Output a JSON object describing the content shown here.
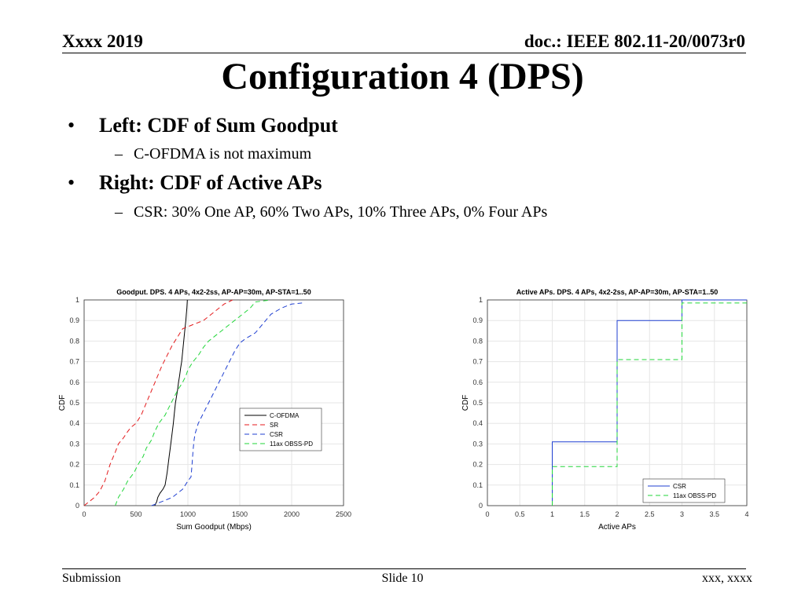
{
  "header": {
    "date": "Xxxx 2019",
    "doc": "doc.: IEEE 802.11-20/0073r0"
  },
  "title": "Configuration 4 (DPS)",
  "bullets": [
    {
      "text": "Left: CDF of Sum Goodput",
      "subs": [
        "C-OFDMA is not maximum"
      ]
    },
    {
      "text": "Right: CDF of Active APs",
      "subs": [
        "CSR: 30% One AP, 60% Two APs, 10% Three APs, 0% Four APs"
      ]
    }
  ],
  "footer": {
    "left": "Submission",
    "center": "Slide 10",
    "right": "xxx, xxxx"
  },
  "chart_data": [
    {
      "type": "line",
      "title": "Goodput. DPS. 4 APs, 4x2-2ss, AP-AP=30m, AP-STA=1..50",
      "xlabel": "Sum Goodput (Mbps)",
      "ylabel": "CDF",
      "xlim": [
        0,
        2500
      ],
      "ylim": [
        0,
        1
      ],
      "xticks": [
        "0",
        "500",
        "1000",
        "1500",
        "2000",
        "2500"
      ],
      "yticks": [
        "0",
        "0.1",
        "0.2",
        "0.3",
        "0.4",
        "0.5",
        "0.6",
        "0.7",
        "0.8",
        "0.9",
        "1"
      ],
      "grid": true,
      "legend_position": "center-right",
      "series": [
        {
          "name": "C-OFDMA",
          "color": "#000000",
          "dash": "solid",
          "step": false,
          "points": [
            [
              680,
              0
            ],
            [
              700,
              0.02
            ],
            [
              710,
              0.04
            ],
            [
              730,
              0.06
            ],
            [
              760,
              0.08
            ],
            [
              780,
              0.1
            ],
            [
              790,
              0.13
            ],
            [
              800,
              0.16
            ],
            [
              810,
              0.2
            ],
            [
              820,
              0.24
            ],
            [
              830,
              0.28
            ],
            [
              840,
              0.32
            ],
            [
              850,
              0.36
            ],
            [
              860,
              0.4
            ],
            [
              870,
              0.45
            ],
            [
              880,
              0.5
            ],
            [
              890,
              0.53
            ],
            [
              900,
              0.56
            ],
            [
              910,
              0.6
            ],
            [
              920,
              0.63
            ],
            [
              930,
              0.67
            ],
            [
              940,
              0.7
            ],
            [
              950,
              0.75
            ],
            [
              960,
              0.8
            ],
            [
              970,
              0.85
            ],
            [
              980,
              0.9
            ],
            [
              985,
              0.93
            ],
            [
              990,
              0.96
            ],
            [
              995,
              1
            ]
          ]
        },
        {
          "name": "SR",
          "color": "#e41a1c",
          "dash": "dashed",
          "step": false,
          "points": [
            [
              0,
              0
            ],
            [
              50,
              0.02
            ],
            [
              100,
              0.04
            ],
            [
              150,
              0.07
            ],
            [
              200,
              0.12
            ],
            [
              250,
              0.2
            ],
            [
              300,
              0.26
            ],
            [
              330,
              0.3
            ],
            [
              380,
              0.33
            ],
            [
              420,
              0.36
            ],
            [
              450,
              0.38
            ],
            [
              500,
              0.4
            ],
            [
              550,
              0.44
            ],
            [
              600,
              0.5
            ],
            [
              650,
              0.56
            ],
            [
              700,
              0.62
            ],
            [
              750,
              0.68
            ],
            [
              800,
              0.73
            ],
            [
              850,
              0.78
            ],
            [
              900,
              0.82
            ],
            [
              950,
              0.86
            ],
            [
              1050,
              0.88
            ],
            [
              1150,
              0.9
            ],
            [
              1250,
              0.94
            ],
            [
              1350,
              0.98
            ],
            [
              1430,
              1
            ]
          ]
        },
        {
          "name": "CSR",
          "color": "#1f3fd1",
          "dash": "dashed",
          "step": false,
          "points": [
            [
              650,
              0
            ],
            [
              750,
              0.02
            ],
            [
              850,
              0.04
            ],
            [
              950,
              0.08
            ],
            [
              1000,
              0.12
            ],
            [
              1030,
              0.14
            ],
            [
              1040,
              0.2
            ],
            [
              1050,
              0.27
            ],
            [
              1060,
              0.32
            ],
            [
              1070,
              0.35
            ],
            [
              1100,
              0.4
            ],
            [
              1150,
              0.45
            ],
            [
              1200,
              0.5
            ],
            [
              1250,
              0.55
            ],
            [
              1300,
              0.6
            ],
            [
              1350,
              0.65
            ],
            [
              1400,
              0.7
            ],
            [
              1450,
              0.75
            ],
            [
              1500,
              0.79
            ],
            [
              1550,
              0.81
            ],
            [
              1650,
              0.84
            ],
            [
              1700,
              0.87
            ],
            [
              1750,
              0.9
            ],
            [
              1800,
              0.93
            ],
            [
              1900,
              0.96
            ],
            [
              2000,
              0.98
            ],
            [
              2100,
              0.985
            ]
          ]
        },
        {
          "name": "11ax OBSS-PD",
          "color": "#22d63a",
          "dash": "dashed",
          "step": false,
          "points": [
            [
              300,
              0
            ],
            [
              330,
              0.04
            ],
            [
              380,
              0.08
            ],
            [
              420,
              0.12
            ],
            [
              480,
              0.16
            ],
            [
              520,
              0.2
            ],
            [
              570,
              0.24
            ],
            [
              600,
              0.28
            ],
            [
              650,
              0.32
            ],
            [
              680,
              0.36
            ],
            [
              720,
              0.4
            ],
            [
              780,
              0.44
            ],
            [
              820,
              0.48
            ],
            [
              860,
              0.52
            ],
            [
              900,
              0.56
            ],
            [
              950,
              0.6
            ],
            [
              980,
              0.63
            ],
            [
              1000,
              0.66
            ],
            [
              1050,
              0.7
            ],
            [
              1100,
              0.73
            ],
            [
              1150,
              0.77
            ],
            [
              1200,
              0.8
            ],
            [
              1300,
              0.84
            ],
            [
              1400,
              0.88
            ],
            [
              1500,
              0.92
            ],
            [
              1600,
              0.96
            ],
            [
              1650,
              0.99
            ],
            [
              1800,
              1
            ]
          ]
        }
      ]
    },
    {
      "type": "line",
      "title": "Active APs. DPS. 4 APs, 4x2-2ss, AP-AP=30m, AP-STA=1..50",
      "xlabel": "Active APs",
      "ylabel": "CDF",
      "xlim": [
        0,
        4
      ],
      "ylim": [
        0,
        1
      ],
      "xticks": [
        "0",
        "0.5",
        "1",
        "1.5",
        "2",
        "2.5",
        "3",
        "3.5",
        "4"
      ],
      "yticks": [
        "0",
        "0.1",
        "0.2",
        "0.3",
        "0.4",
        "0.5",
        "0.6",
        "0.7",
        "0.8",
        "0.9",
        "1"
      ],
      "grid": true,
      "legend_position": "bottom-right",
      "series": [
        {
          "name": "CSR",
          "color": "#1f3fd1",
          "dash": "solid",
          "step": true,
          "points": [
            [
              1,
              0
            ],
            [
              1,
              0.31
            ],
            [
              2,
              0.31
            ],
            [
              2,
              0.9
            ],
            [
              3,
              0.9
            ],
            [
              3,
              1
            ],
            [
              4,
              1
            ]
          ]
        },
        {
          "name": "11ax OBSS-PD",
          "color": "#22d63a",
          "dash": "dashed",
          "step": true,
          "points": [
            [
              1,
              0
            ],
            [
              1,
              0.19
            ],
            [
              2,
              0.19
            ],
            [
              2,
              0.71
            ],
            [
              3,
              0.71
            ],
            [
              3,
              0.985
            ],
            [
              4,
              0.985
            ]
          ]
        }
      ]
    }
  ]
}
